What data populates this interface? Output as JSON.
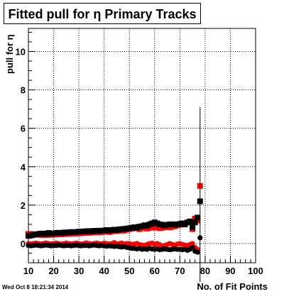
{
  "chart_data": {
    "type": "scatter",
    "title": "Fitted pull for η Primary Tracks",
    "xlabel": "No. of Fit Points",
    "ylabel": "pull for η",
    "xlim": [
      10,
      100
    ],
    "ylim": [
      -1,
      11.2
    ],
    "xticks": [
      10,
      20,
      30,
      40,
      50,
      60,
      70,
      80,
      90,
      100
    ],
    "yticks": [
      0,
      2,
      4,
      6,
      8,
      10
    ],
    "grid": true,
    "series": [
      {
        "color": "#ff0000",
        "marker": "square",
        "x": [
          10,
          11,
          12,
          13,
          14,
          15,
          16,
          17,
          18,
          19,
          20,
          21,
          22,
          23,
          24,
          25,
          26,
          27,
          28,
          29,
          30,
          31,
          32,
          33,
          34,
          35,
          36,
          37,
          38,
          39,
          40,
          41,
          42,
          43,
          44,
          45,
          46,
          47,
          48,
          49,
          50,
          51,
          52,
          53,
          54,
          55,
          56,
          57,
          58,
          59,
          60,
          61,
          62,
          63,
          64,
          65,
          66,
          67,
          68,
          69,
          70,
          71,
          72,
          73,
          74,
          75,
          76,
          77,
          78
        ],
        "y": [
          0.5,
          0.5,
          0.48,
          0.47,
          0.46,
          0.45,
          0.44,
          0.45,
          0.46,
          0.45,
          0.47,
          0.47,
          0.48,
          0.48,
          0.49,
          0.5,
          0.5,
          0.51,
          0.52,
          0.52,
          0.53,
          0.54,
          0.55,
          0.55,
          0.56,
          0.57,
          0.58,
          0.6,
          0.58,
          0.6,
          0.62,
          0.64,
          0.6,
          0.63,
          0.66,
          0.65,
          0.7,
          0.67,
          0.68,
          0.72,
          0.75,
          0.78,
          0.8,
          0.8,
          0.75,
          0.8,
          0.85,
          0.78,
          0.82,
          0.85,
          0.83,
          0.88,
          0.8,
          0.82,
          0.85,
          0.88,
          0.84,
          0.88,
          0.9,
          0.95,
          0.98,
          1.02,
          1.0,
          1.1,
          1.15,
          0.75,
          1.3,
          1.2,
          3.0
        ]
      },
      {
        "color": "#000000",
        "marker": "square",
        "x": [
          10,
          11,
          12,
          13,
          14,
          15,
          16,
          17,
          18,
          19,
          20,
          21,
          22,
          23,
          24,
          25,
          26,
          27,
          28,
          29,
          30,
          31,
          32,
          33,
          34,
          35,
          36,
          37,
          38,
          39,
          40,
          41,
          42,
          43,
          44,
          45,
          46,
          47,
          48,
          49,
          50,
          51,
          52,
          53,
          54,
          55,
          56,
          57,
          58,
          59,
          60,
          61,
          62,
          63,
          64,
          65,
          66,
          67,
          68,
          69,
          70,
          71,
          72,
          73,
          74,
          75,
          76,
          77,
          78
        ],
        "y": [
          0.4,
          0.42,
          0.45,
          0.48,
          0.5,
          0.52,
          0.52,
          0.5,
          0.55,
          0.52,
          0.53,
          0.55,
          0.56,
          0.55,
          0.57,
          0.58,
          0.58,
          0.6,
          0.59,
          0.6,
          0.62,
          0.62,
          0.63,
          0.64,
          0.65,
          0.64,
          0.66,
          0.66,
          0.67,
          0.66,
          0.68,
          0.7,
          0.68,
          0.7,
          0.72,
          0.7,
          0.74,
          0.75,
          0.76,
          0.78,
          0.8,
          0.82,
          0.85,
          0.82,
          0.88,
          0.9,
          0.95,
          0.92,
          1.0,
          1.05,
          1.1,
          1.05,
          1.0,
          0.98,
          0.95,
          0.97,
          1.0,
          1.0,
          0.98,
          1.0,
          1.02,
          1.05,
          1.0,
          1.1,
          1.15,
          0.85,
          1.1,
          1.35,
          2.2
        ],
        "error_bar_x": 78,
        "error_bar": [
          -2.0,
          7.1
        ]
      },
      {
        "color": "#ff0000",
        "marker": "circle",
        "x": [
          10,
          11,
          12,
          13,
          14,
          15,
          16,
          17,
          18,
          19,
          20,
          21,
          22,
          23,
          24,
          25,
          26,
          27,
          28,
          29,
          30,
          31,
          32,
          33,
          34,
          35,
          36,
          37,
          38,
          39,
          40,
          41,
          42,
          43,
          44,
          45,
          46,
          47,
          48,
          49,
          50,
          51,
          52,
          53,
          54,
          55,
          56,
          57,
          58,
          59,
          60,
          61,
          62,
          63,
          64,
          65,
          66,
          67,
          68,
          69,
          70,
          71,
          72,
          73,
          74,
          75,
          76,
          77
        ],
        "y": [
          0.0,
          -0.02,
          0.0,
          0.02,
          0.0,
          -0.02,
          0.0,
          0.03,
          0.0,
          -0.02,
          0.0,
          0.02,
          0.0,
          -0.03,
          0.0,
          0.02,
          0.0,
          -0.02,
          0.0,
          0.02,
          0.0,
          -0.03,
          0.0,
          0.03,
          0.0,
          -0.02,
          0.0,
          0.02,
          0.0,
          -0.02,
          0.02,
          0.0,
          -0.03,
          0.0,
          0.05,
          -0.02,
          0.0,
          0.02,
          -0.03,
          0.0,
          0.0,
          -0.05,
          -0.03,
          0.0,
          -0.05,
          -0.08,
          -0.1,
          -0.05,
          0.0,
          0.02,
          -0.05,
          0.0,
          -0.05,
          -0.15,
          -0.1,
          -0.05,
          0.0,
          -0.05,
          -0.08,
          -0.03,
          0.0,
          -0.05,
          -0.08,
          -0.1,
          -0.05,
          0.0,
          -0.2,
          -0.3
        ]
      },
      {
        "color": "#000000",
        "marker": "circle",
        "x": [
          10,
          11,
          12,
          13,
          14,
          15,
          16,
          17,
          18,
          19,
          20,
          21,
          22,
          23,
          24,
          25,
          26,
          27,
          28,
          29,
          30,
          31,
          32,
          33,
          34,
          35,
          36,
          37,
          38,
          39,
          40,
          41,
          42,
          43,
          44,
          45,
          46,
          47,
          48,
          49,
          50,
          51,
          52,
          53,
          54,
          55,
          56,
          57,
          58,
          59,
          60,
          61,
          62,
          63,
          64,
          65,
          66,
          67,
          68,
          69,
          70,
          71,
          72,
          73,
          74,
          75,
          76,
          77,
          78
        ],
        "y": [
          -0.1,
          -0.12,
          -0.1,
          -0.08,
          -0.1,
          -0.12,
          -0.1,
          -0.08,
          -0.1,
          -0.12,
          -0.1,
          -0.1,
          -0.08,
          -0.1,
          -0.12,
          -0.1,
          -0.1,
          -0.12,
          -0.1,
          -0.08,
          -0.1,
          -0.12,
          -0.1,
          -0.1,
          -0.12,
          -0.1,
          -0.08,
          -0.1,
          -0.12,
          -0.1,
          -0.12,
          -0.14,
          -0.12,
          -0.13,
          -0.15,
          -0.14,
          -0.16,
          -0.18,
          -0.16,
          -0.2,
          -0.22,
          -0.25,
          -0.25,
          -0.28,
          -0.25,
          -0.3,
          -0.28,
          -0.3,
          -0.25,
          -0.28,
          -0.3,
          -0.28,
          -0.32,
          -0.3,
          -0.28,
          -0.3,
          -0.32,
          -0.3,
          -0.28,
          -0.3,
          -0.3,
          -0.32,
          -0.3,
          -0.35,
          -0.3,
          -0.2,
          -0.4,
          -0.45,
          0.3
        ]
      }
    ]
  },
  "timestamp": "Wed Oct  8 18:21:34 2014"
}
